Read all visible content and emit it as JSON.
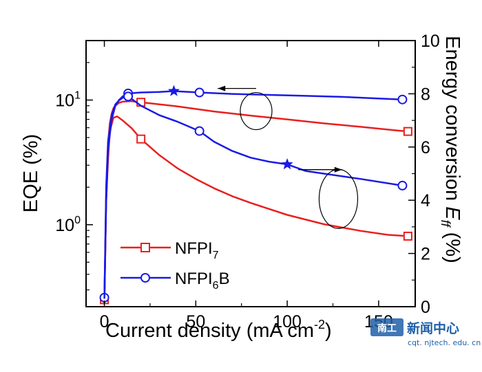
{
  "chart_data": {
    "type": "line",
    "xlabel": "Current density (mA cm",
    "xlabel_sup": "-2",
    "xlabel_close": ")",
    "ylabel_left": "EQE (%)",
    "ylabel_right_main": "Energy conversion ",
    "ylabel_right_italic": "E",
    "ylabel_right_sub": "ff",
    "ylabel_right_tail": " (%)",
    "x_ticks": [
      "0",
      "50",
      "100",
      "150"
    ],
    "x_tick_values": [
      0,
      50,
      100,
      150
    ],
    "xlim": [
      -10,
      170
    ],
    "ylim_left_log": [
      0.22,
      30
    ],
    "y_left_tick_values": [
      1,
      10
    ],
    "y_left_tick_labels": [
      {
        "base": "10",
        "exp": "0"
      },
      {
        "base": "10",
        "exp": "1"
      }
    ],
    "y_right_ticks": [
      "0",
      "2",
      "4",
      "6",
      "8",
      "10"
    ],
    "y_right_tick_values": [
      0,
      2,
      4,
      6,
      8,
      10
    ],
    "ylim_right": [
      0,
      10
    ],
    "legend": [
      {
        "base": "NFPI",
        "sub": "7",
        "tail": "",
        "marker": "square",
        "color": "#e8201e"
      },
      {
        "base": "NFPI",
        "sub": "6",
        "tail": "B",
        "marker": "circle",
        "color": "#1a1ae6"
      }
    ],
    "legend_position": "bottom-left",
    "series": [
      {
        "legend_index": 0,
        "axis": "left",
        "marker": "square",
        "color": "#e8201e",
        "curve": [
          [
            0,
            0.25
          ],
          [
            0.5,
            0.6
          ],
          [
            1,
            1.8
          ],
          [
            2,
            4.5
          ],
          [
            3,
            6.5
          ],
          [
            4,
            7.8
          ],
          [
            5,
            8.6
          ],
          [
            6,
            9.0
          ],
          [
            8,
            9.5
          ],
          [
            10,
            9.7
          ],
          [
            15,
            9.8
          ],
          [
            20,
            9.6
          ],
          [
            40,
            8.9
          ],
          [
            60,
            8.1
          ],
          [
            80,
            7.5
          ],
          [
            100,
            7.0
          ],
          [
            120,
            6.5
          ],
          [
            140,
            6.1
          ],
          [
            160,
            5.7
          ],
          [
            166,
            5.6
          ]
        ],
        "markers": [
          [
            0,
            0.25
          ],
          [
            20,
            9.6
          ],
          [
            166,
            5.6
          ]
        ]
      },
      {
        "legend_index": 0,
        "axis": "right",
        "marker": "square",
        "color": "#e8201e",
        "curve": [
          [
            0,
            0.1
          ],
          [
            1,
            4.0
          ],
          [
            2,
            5.5
          ],
          [
            3,
            6.6
          ],
          [
            5,
            7.1
          ],
          [
            7,
            7.15
          ],
          [
            10,
            7.0
          ],
          [
            15,
            6.7
          ],
          [
            20,
            6.3
          ],
          [
            30,
            5.7
          ],
          [
            40,
            5.2
          ],
          [
            50,
            4.8
          ],
          [
            60,
            4.45
          ],
          [
            70,
            4.15
          ],
          [
            80,
            3.9
          ],
          [
            100,
            3.45
          ],
          [
            120,
            3.1
          ],
          [
            140,
            2.85
          ],
          [
            155,
            2.7
          ],
          [
            166,
            2.65
          ]
        ],
        "markers": [
          [
            20,
            6.3
          ],
          [
            166,
            2.65
          ]
        ]
      },
      {
        "legend_index": 1,
        "axis": "left",
        "marker": "circle",
        "color": "#1a1ae6",
        "curve": [
          [
            0,
            0.26
          ],
          [
            1,
            1.5
          ],
          [
            2,
            4.0
          ],
          [
            4,
            7.0
          ],
          [
            6,
            9.0
          ],
          [
            8,
            10.0
          ],
          [
            10,
            10.7
          ],
          [
            13,
            11.3
          ],
          [
            20,
            11.5
          ],
          [
            30,
            11.6
          ],
          [
            38,
            11.8
          ],
          [
            52,
            11.5
          ],
          [
            70,
            11.2
          ],
          [
            90,
            11.0
          ],
          [
            110,
            10.8
          ],
          [
            130,
            10.6
          ],
          [
            150,
            10.3
          ],
          [
            163,
            10.1
          ]
        ],
        "markers": [
          [
            0,
            0.26
          ],
          [
            13,
            11.3
          ],
          [
            52,
            11.5
          ],
          [
            163,
            10.1
          ]
        ]
      },
      {
        "legend_index": 1,
        "axis": "right",
        "marker": "circle",
        "color": "#1a1ae6",
        "curve": [
          [
            0,
            0.3
          ],
          [
            1,
            4.5
          ],
          [
            2,
            6.2
          ],
          [
            4,
            7.2
          ],
          [
            6,
            7.6
          ],
          [
            8,
            7.75
          ],
          [
            10,
            7.85
          ],
          [
            13,
            7.9
          ],
          [
            20,
            7.55
          ],
          [
            30,
            7.2
          ],
          [
            40,
            6.95
          ],
          [
            52,
            6.6
          ],
          [
            60,
            6.2
          ],
          [
            70,
            5.85
          ],
          [
            80,
            5.6
          ],
          [
            90,
            5.45
          ],
          [
            100,
            5.35
          ],
          [
            110,
            5.1
          ],
          [
            120,
            5.0
          ],
          [
            140,
            4.8
          ],
          [
            163,
            4.55
          ]
        ],
        "markers": [
          [
            13,
            7.9
          ],
          [
            52,
            6.6
          ],
          [
            163,
            4.55
          ]
        ]
      }
    ],
    "star_markers": [
      {
        "x": 38,
        "y": 11.8,
        "axis": "left",
        "color": "#1a1ae6"
      },
      {
        "x": 100,
        "y": 5.35,
        "axis": "right",
        "color": "#1a1ae6"
      }
    ],
    "annotations": [
      {
        "type": "ellipse-arrow",
        "ellipse": {
          "x": 83,
          "y": 7.35,
          "axis": "right"
        },
        "arrow_from": {
          "x": 83,
          "y": 8.2
        },
        "arrow_to": {
          "x": 62,
          "y": 8.2
        },
        "direction": "left"
      },
      {
        "type": "ellipse-arrow",
        "ellipse": {
          "x": 128,
          "y": 4.05,
          "axis": "right"
        },
        "arrow_from": {
          "x": 106,
          "y": 5.15
        },
        "arrow_to": {
          "x": 130,
          "y": 5.15
        },
        "direction": "right"
      }
    ]
  },
  "watermark": {
    "title": "新闻中心",
    "url": "cqt. njtech. edu. cn",
    "logo_text": "南工"
  }
}
